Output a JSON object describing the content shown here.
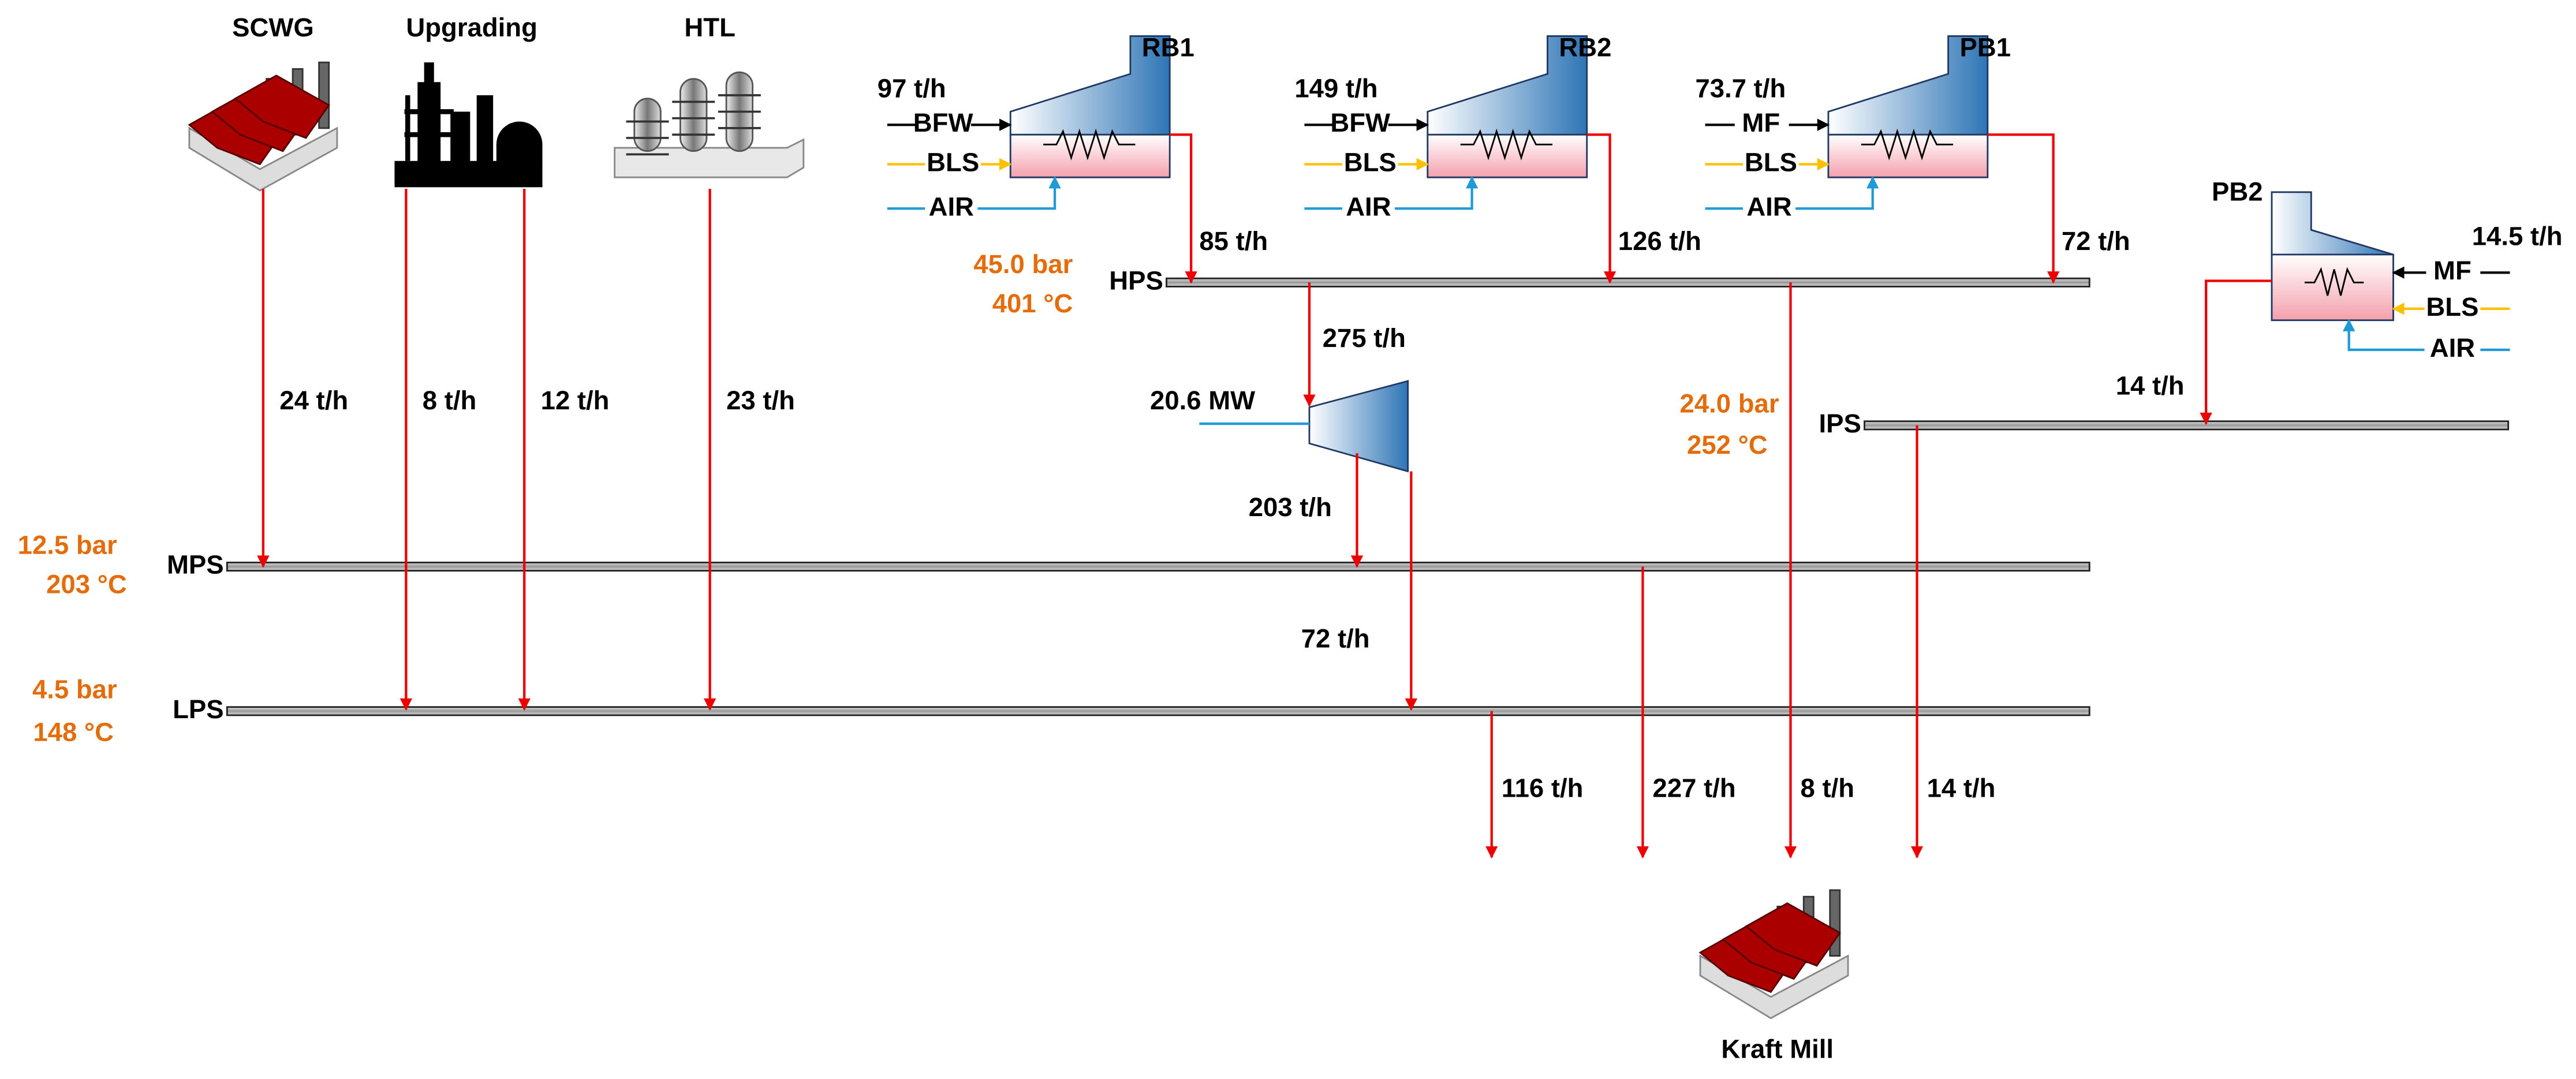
{
  "units": {
    "scwg": "SCWG",
    "upgrading": "Upgrading",
    "htl": "HTL",
    "kraft_mill": "Kraft Mill"
  },
  "boilers": [
    {
      "name": "RB1",
      "feed_flow": "97 t/h",
      "water": "BFW",
      "fuel": "BLS",
      "air": "AIR",
      "steam_flow": "85 t/h"
    },
    {
      "name": "RB2",
      "feed_flow": "149 t/h",
      "water": "BFW",
      "fuel": "BLS",
      "air": "AIR",
      "steam_flow": "126 t/h"
    },
    {
      "name": "PB1",
      "feed_flow": "73.7 t/h",
      "water": "MF",
      "fuel": "BLS",
      "air": "AIR",
      "steam_flow": "72 t/h"
    },
    {
      "name": "PB2",
      "feed_flow": "14.5 t/h",
      "water": "MF",
      "fuel": "BLS",
      "air": "AIR",
      "steam_flow": "14 t/h"
    }
  ],
  "headers": {
    "hps": {
      "label": "HPS",
      "pressure": "45.0 bar",
      "temperature": "401 °C"
    },
    "ips": {
      "label": "IPS",
      "pressure": "24.0 bar",
      "temperature": "252 °C"
    },
    "mps": {
      "label": "MPS",
      "pressure": "12.5 bar",
      "temperature": "203 °C"
    },
    "lps": {
      "label": "LPS",
      "pressure": "4.5 bar",
      "temperature": "148 °C"
    }
  },
  "turbine": {
    "power": "20.6 MW",
    "inlet_flow": "275 t/h",
    "mps_extraction": "203 t/h",
    "lps_exhaust": "72 t/h"
  },
  "unit_flows": [
    "24 t/h",
    "8 t/h",
    "12 t/h",
    "23 t/h"
  ],
  "mill_flows": [
    "116 t/h",
    "227 t/h",
    "8 t/h",
    "14 t/h"
  ]
}
